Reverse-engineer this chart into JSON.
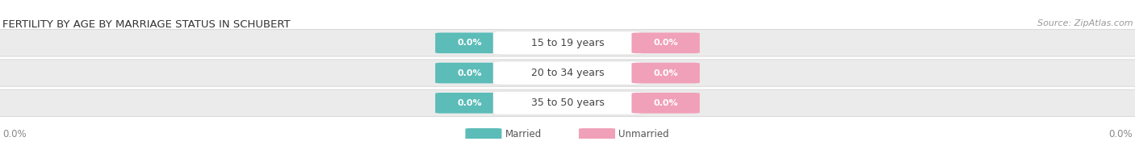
{
  "title": "FERTILITY BY AGE BY MARRIAGE STATUS IN SCHUBERT",
  "source": "Source: ZipAtlas.com",
  "categories": [
    "15 to 19 years",
    "20 to 34 years",
    "35 to 50 years"
  ],
  "married_values": [
    0.0,
    0.0,
    0.0
  ],
  "unmarried_values": [
    0.0,
    0.0,
    0.0
  ],
  "married_color": "#5bbcb8",
  "unmarried_color": "#f0a0b8",
  "bar_bg_color": "#ebebeb",
  "bar_border_color": "#cccccc",
  "title_fontsize": 9.5,
  "source_fontsize": 8,
  "label_fontsize": 8.5,
  "category_fontsize": 9,
  "value_label_fontsize": 8,
  "left_axis_label": "0.0%",
  "right_axis_label": "0.0%",
  "background_color": "#ffffff",
  "legend_married": "Married",
  "legend_unmarried": "Unmarried"
}
